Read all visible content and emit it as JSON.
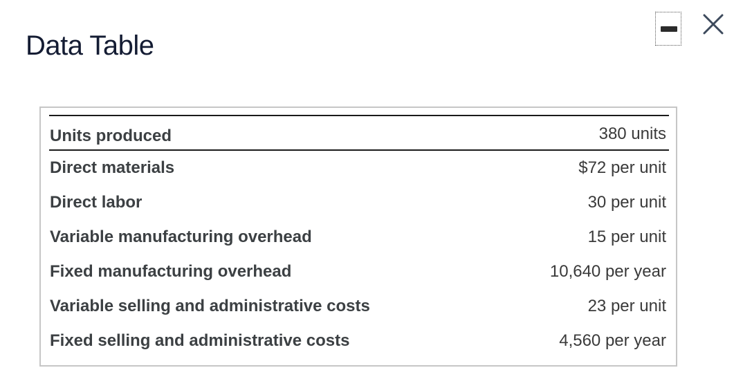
{
  "dialog": {
    "title": "Data Table",
    "icons": {
      "minimize": "minimize-icon",
      "close": "close-icon"
    }
  },
  "table": {
    "header": {
      "label": "Units produced",
      "value": "380 units"
    },
    "rows": [
      {
        "label": "Direct materials",
        "value": "$72 per unit"
      },
      {
        "label": "Direct labor",
        "value": "30 per unit"
      },
      {
        "label": "Variable manufacturing overhead",
        "value": "15 per unit"
      },
      {
        "label": "Fixed manufacturing overhead",
        "value": "10,640 per year"
      },
      {
        "label": "Variable selling and administrative costs",
        "value": "23 per unit"
      },
      {
        "label": "Fixed selling and administrative costs",
        "value": "4,560 per year"
      }
    ]
  },
  "colors": {
    "title": "#141c33",
    "frame_border": "#c6c6c6",
    "rule": "#1a1a1a",
    "label_text": "#3c4043"
  }
}
